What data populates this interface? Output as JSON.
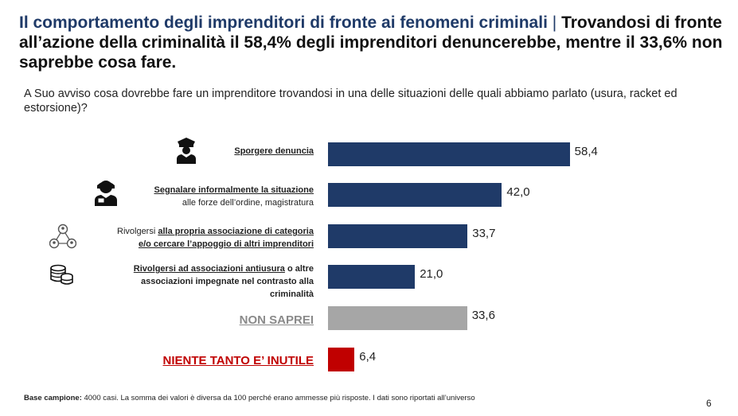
{
  "header": {
    "title_lead": "Il comportamento degli imprenditori di fronte ai fenomeni criminali",
    "separator": "|",
    "title_rest": "Trovandosi di fronte all’azione della criminalità il 58,4% degli imprenditori denuncerebbe, mentre il 33,6% non saprebbe cosa fare."
  },
  "question": "A Suo avviso cosa dovrebbe fare un imprenditore trovandosi in una delle situazioni delle quali abbiamo parlato (usura, racket ed estorsione)?",
  "colors": {
    "primary": "#1f3a68",
    "grey": "#a6a6a6",
    "red": "#c00000"
  },
  "chart_data": {
    "type": "bar",
    "orientation": "horizontal",
    "categories": [
      "Sporgere denuncia",
      "Segnalare informalmente la situazione alle forze dell’ordine, magistratura",
      "Rivolgersi alla propria associazione di categoria e/o cercare l’appoggio di altri imprenditori",
      "Rivolgersi ad associazioni antiusura o altre associazioni impegnate nel contrasto alla criminalità",
      "NON SAPREI",
      "NIENTE TANTO E’ INUTILE"
    ],
    "values": [
      58.4,
      42.0,
      33.7,
      21.0,
      33.6,
      6.4
    ],
    "value_labels": [
      "58,4",
      "42,0",
      "33,7",
      "21,0",
      "33,6",
      "6,4"
    ],
    "bar_colors": [
      "#1f3a68",
      "#1f3a68",
      "#1f3a68",
      "#1f3a68",
      "#a6a6a6",
      "#c00000"
    ],
    "xlim": [
      0,
      100
    ]
  },
  "rows": [
    {
      "icon": "police-officer-icon",
      "bold": "Sporgere denuncia",
      "sub": ""
    },
    {
      "icon": "informant-icon",
      "bold": "Segnalare informalmente la situazione",
      "sub": "alle forze dell’ordine, magistratura"
    },
    {
      "icon": "network-people-icon",
      "pre": "Rivolgersi ",
      "bold": "alla propria associazione di categoria",
      "bold2": "e/o cercare l’appoggio di altri imprenditori"
    },
    {
      "icon": "coins-stack-icon",
      "bold": "Rivolgersi ad associazioni antiusura",
      "post": " o altre",
      "line2": "associazioni impegnate nel contrasto alla",
      "line3": "criminalità"
    },
    {
      "label": "NON SAPREI"
    },
    {
      "label": "NIENTE TANTO E’ INUTILE"
    }
  ],
  "footer": {
    "label": "Base campione:",
    "text": " 4000 casi. La somma dei valori è diversa da 100 perché erano ammesse più risposte. I dati sono riportati all’universo"
  },
  "page_number": "6"
}
